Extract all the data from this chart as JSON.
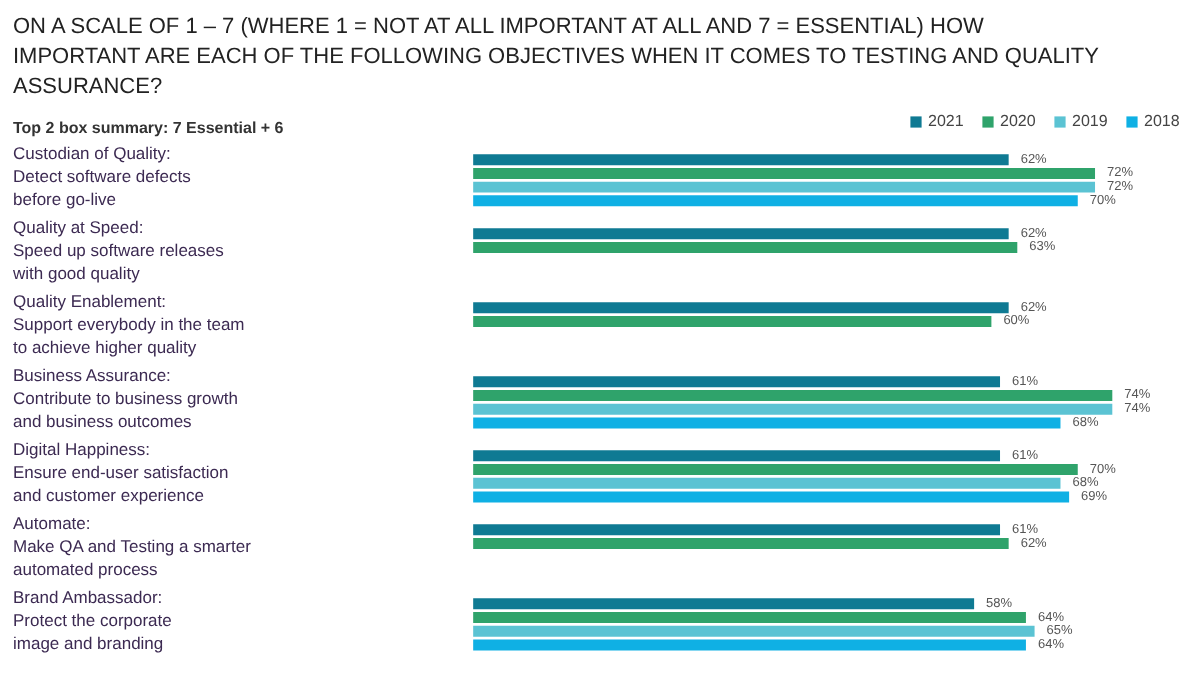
{
  "chart_data": {
    "type": "bar",
    "orientation": "horizontal",
    "title": "ON A SCALE OF 1 – 7 (WHERE 1 = NOT AT ALL IMPORTANT AT ALL AND 7 = ESSENTIAL) HOW IMPORTANT ARE EACH OF THE FOLLOWING OBJECTIVES WHEN IT COMES TO TESTING AND QUALITY ASSURANCE?",
    "subtitle": "Top 2 box summary: 7 Essential + 6",
    "categories": [
      "Custodian of Quality:\nDetect software defects\nbefore go-live",
      "Quality at Speed:\nSpeed up software releases\nwith good quality",
      "Quality Enablement:\nSupport everybody in the team\nto achieve higher quality",
      "Business Assurance:\nContribute to business growth\nand business outcomes",
      "Digital Happiness:\nEnsure end-user satisfaction\nand customer experience",
      "Automate:\nMake QA and Testing a smarter\nautomated process",
      "Brand Ambassador:\nProtect the corporate\nimage and branding"
    ],
    "series": [
      {
        "name": "2021",
        "color": "#0f7a93",
        "values": [
          62,
          62,
          62,
          61,
          61,
          61,
          58
        ],
        "value_labels": [
          "62%",
          "62%",
          "62%",
          "61%",
          "61%",
          "61%",
          "58%"
        ]
      },
      {
        "name": "2020",
        "color": "#2fa36b",
        "values": [
          72,
          63,
          60,
          74,
          70,
          62,
          64
        ],
        "value_labels": [
          "72%",
          "63%",
          "60%",
          "74%",
          "70%",
          "62%",
          "64%"
        ]
      },
      {
        "name": "2019",
        "color": "#5bc3d3",
        "values": [
          72,
          null,
          null,
          74,
          68,
          null,
          65
        ],
        "value_labels": [
          "72%",
          null,
          null,
          "74%",
          "68%",
          null,
          "65%"
        ]
      },
      {
        "name": "2018",
        "color": "#0fb0e4",
        "values": [
          70,
          null,
          null,
          68,
          69,
          null,
          64
        ],
        "value_labels": [
          "70%",
          null,
          null,
          "68%",
          "69%",
          null,
          "64%"
        ]
      }
    ],
    "grid": false,
    "legend": "top right"
  }
}
